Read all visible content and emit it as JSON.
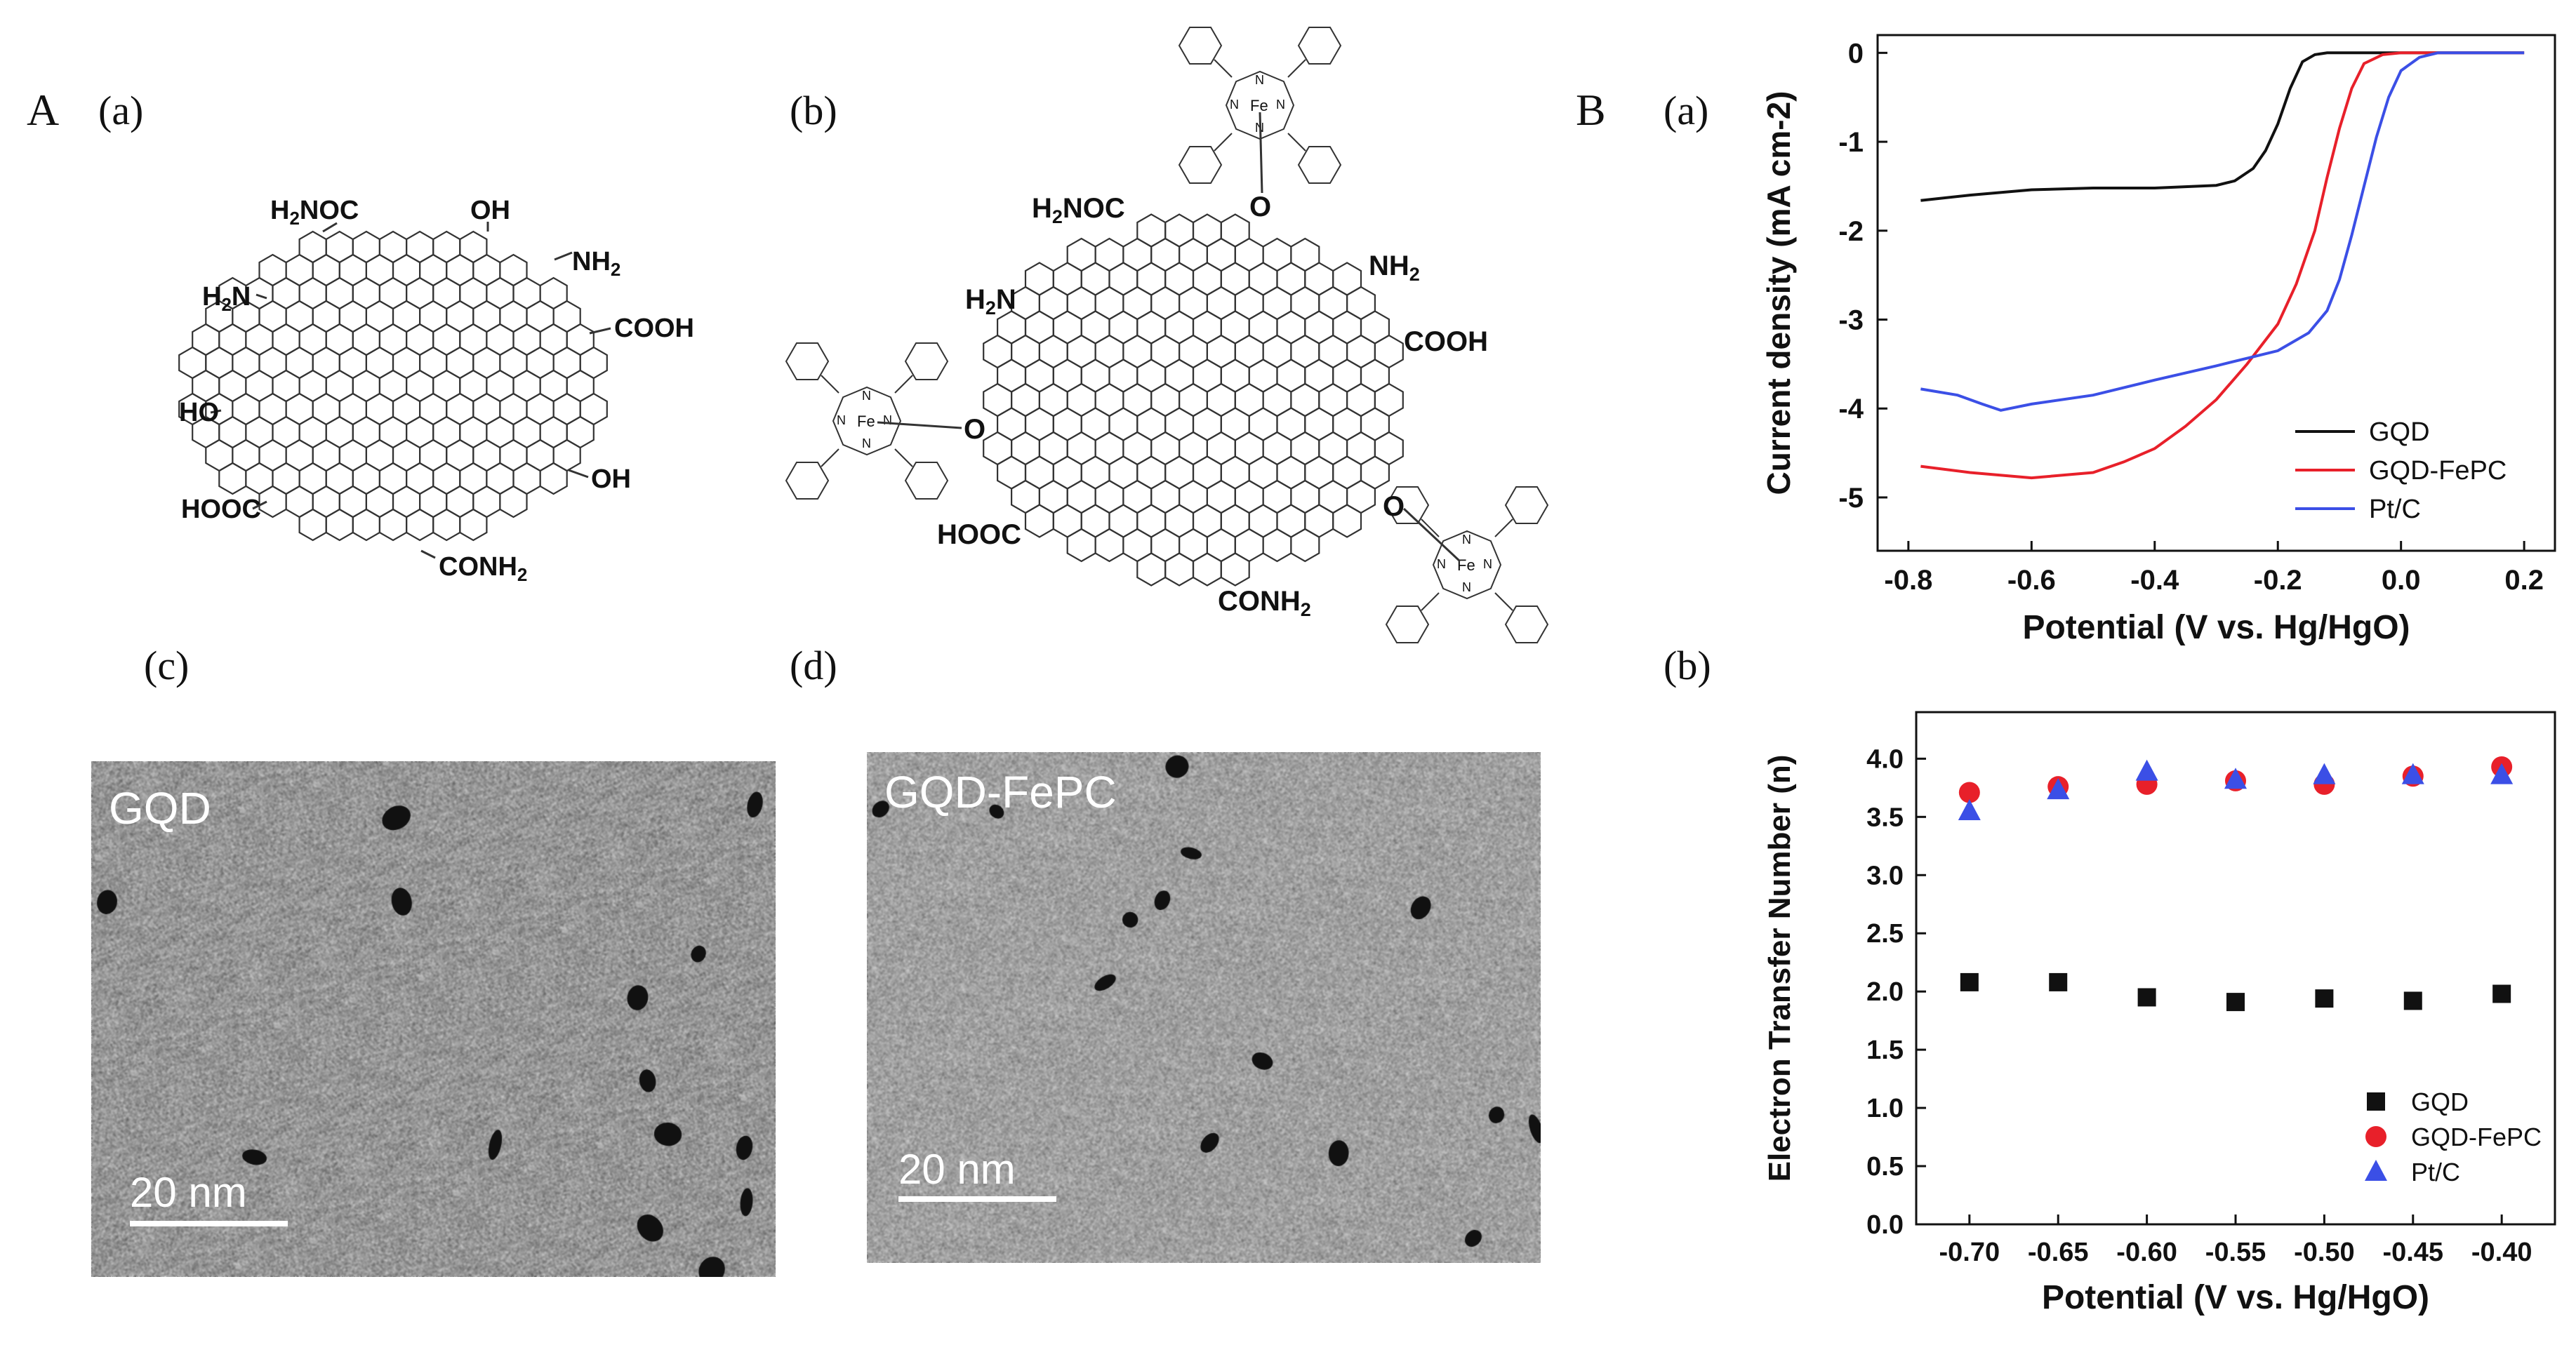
{
  "figure": {
    "panel_A": "A",
    "panel_B": "B",
    "sub_a": "(a)",
    "sub_b": "(b)",
    "sub_c": "(c)",
    "sub_d": "(d)",
    "sub_Ba": "(a)",
    "sub_Bb": "(b)"
  },
  "structure_a": {
    "groups": [
      "H2NOC",
      "OH",
      "NH2",
      "H2N",
      "COOH",
      "HO",
      "OH",
      "HOOC",
      "CONH2"
    ]
  },
  "structure_b": {
    "groups": [
      "H2NOC",
      "NH2",
      "H2N",
      "COOH",
      "HOOC",
      "CONH2",
      "O",
      "O",
      "O",
      "Fe",
      "Fe",
      "Fe",
      "N"
    ]
  },
  "tem_c": {
    "label": "GQD",
    "scale": "20 nm"
  },
  "tem_d": {
    "label": "GQD-FePC",
    "scale": "20 nm"
  },
  "colors": {
    "gqd": "#111111",
    "gqd_fepc": "#e8202a",
    "ptc": "#3b4fe6"
  },
  "chart_data": [
    {
      "type": "line",
      "xlabel": "Potential (V vs. Hg/HgO)",
      "ylabel": "Current density (mA cm-2)",
      "xlim": [
        -0.85,
        0.25
      ],
      "ylim": [
        -5.6,
        0.2
      ],
      "xticks": [
        "-0.8",
        "-0.6",
        "-0.4",
        "-0.2",
        "0.0",
        "0.2"
      ],
      "yticks": [
        "0",
        "-1",
        "-2",
        "-3",
        "-4",
        "-5"
      ],
      "legend_position": "bottom-right",
      "series": [
        {
          "name": "GQD",
          "color": "#111111",
          "x": [
            -0.78,
            -0.7,
            -0.6,
            -0.5,
            -0.4,
            -0.3,
            -0.27,
            -0.24,
            -0.22,
            -0.2,
            -0.18,
            -0.16,
            -0.14,
            -0.12,
            -0.1,
            0.0,
            0.1,
            0.2
          ],
          "y": [
            -1.66,
            -1.6,
            -1.54,
            -1.52,
            -1.52,
            -1.49,
            -1.44,
            -1.3,
            -1.1,
            -0.8,
            -0.4,
            -0.1,
            -0.02,
            0,
            0,
            0,
            0,
            0
          ]
        },
        {
          "name": "GQD-FePC",
          "color": "#e8202a",
          "x": [
            -0.78,
            -0.7,
            -0.6,
            -0.5,
            -0.45,
            -0.4,
            -0.35,
            -0.3,
            -0.25,
            -0.2,
            -0.17,
            -0.14,
            -0.12,
            -0.1,
            -0.08,
            -0.06,
            -0.03,
            0.0,
            0.1,
            0.2
          ],
          "y": [
            -4.65,
            -4.72,
            -4.78,
            -4.72,
            -4.6,
            -4.45,
            -4.2,
            -3.9,
            -3.5,
            -3.05,
            -2.6,
            -2.0,
            -1.4,
            -0.85,
            -0.4,
            -0.12,
            -0.02,
            0,
            0,
            0.0
          ]
        },
        {
          "name": "Pt/C",
          "color": "#3b4fe6",
          "x": [
            -0.78,
            -0.72,
            -0.68,
            -0.65,
            -0.6,
            -0.5,
            -0.4,
            -0.3,
            -0.2,
            -0.15,
            -0.12,
            -0.1,
            -0.08,
            -0.06,
            -0.04,
            -0.02,
            0.0,
            0.03,
            0.06,
            0.1,
            0.2
          ],
          "y": [
            -3.78,
            -3.85,
            -3.95,
            -4.02,
            -3.95,
            -3.85,
            -3.68,
            -3.52,
            -3.35,
            -3.15,
            -2.9,
            -2.55,
            -2.05,
            -1.5,
            -0.95,
            -0.5,
            -0.2,
            -0.05,
            0,
            0,
            0
          ]
        }
      ]
    },
    {
      "type": "scatter",
      "xlabel": "Potential (V vs. Hg/HgO)",
      "ylabel": "Electron Transfer Number (n)",
      "xlim": [
        -0.73,
        -0.37
      ],
      "ylim": [
        0.0,
        4.4
      ],
      "xticks": [
        "-0.70",
        "-0.65",
        "-0.60",
        "-0.55",
        "-0.50",
        "-0.45",
        "-0.40"
      ],
      "yticks": [
        "0.0",
        "0.5",
        "1.0",
        "1.5",
        "2.0",
        "2.5",
        "3.0",
        "3.5",
        "4.0"
      ],
      "legend_position": "bottom-right",
      "x": [
        -0.7,
        -0.65,
        -0.6,
        -0.55,
        -0.5,
        -0.45,
        -0.4
      ],
      "series": [
        {
          "name": "GQD",
          "marker": "square",
          "color": "#111111",
          "values": [
            2.08,
            2.08,
            1.95,
            1.91,
            1.94,
            1.92,
            1.98
          ]
        },
        {
          "name": "GQD-FePC",
          "marker": "circle",
          "color": "#e8202a",
          "values": [
            3.71,
            3.76,
            3.78,
            3.81,
            3.78,
            3.85,
            3.93
          ]
        },
        {
          "name": "Pt/C",
          "marker": "triangle",
          "color": "#3b4fe6",
          "values": [
            3.55,
            3.73,
            3.89,
            3.82,
            3.86,
            3.86,
            3.86
          ]
        }
      ]
    }
  ]
}
